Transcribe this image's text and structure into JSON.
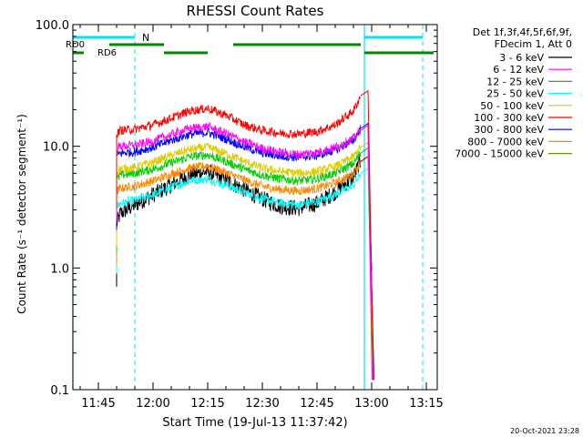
{
  "chart_data": {
    "type": "line",
    "title": "RHESSI Count Rates",
    "xlabel": "Start Time (19-Jul-13 11:37:42)",
    "ylabel": "Count Rate (s⁻¹ detector segment⁻¹)",
    "yscale": "log",
    "ylim": [
      0.1,
      100
    ],
    "xlim": [
      "11:38",
      "13:18"
    ],
    "x_ticks": [
      "11:45",
      "12:00",
      "12:15",
      "12:30",
      "12:45",
      "13:00",
      "13:15"
    ],
    "y_ticks": [
      "0.1",
      "1.0",
      "10.0",
      "100.0"
    ],
    "grid": false,
    "legend_header": [
      "Det 1f,3f,4f,5f,6f,9f,",
      "FDecim 1, Att 0"
    ],
    "legend_position": "right",
    "series": [
      {
        "name": "3 - 6 keV",
        "color": "#000000",
        "x": [
          "11:50",
          "11:51",
          "11:55",
          "12:00",
          "12:05",
          "12:10",
          "12:15",
          "12:20",
          "12:25",
          "12:30",
          "12:35",
          "12:40",
          "12:45",
          "12:50",
          "12:55",
          "12:57"
        ],
        "y": [
          2.3,
          2.8,
          3.3,
          4.0,
          4.8,
          5.8,
          6.2,
          5.3,
          4.4,
          3.7,
          3.2,
          3.1,
          3.4,
          4.2,
          5.6,
          7.5
        ]
      },
      {
        "name": "6 - 12 keV",
        "color": "#ff00ff",
        "x": [
          "11:50",
          "11:51",
          "11:55",
          "12:00",
          "12:05",
          "12:10",
          "12:15",
          "12:20",
          "12:25",
          "12:30",
          "12:35",
          "12:40",
          "12:45",
          "12:50",
          "12:55",
          "12:57"
        ],
        "y": [
          9.5,
          10.0,
          10.2,
          11.0,
          12.5,
          14.0,
          14.5,
          12.8,
          10.9,
          9.6,
          8.9,
          8.6,
          8.9,
          9.8,
          11.6,
          13.5
        ]
      },
      {
        "name": "12 - 25 keV",
        "color": "#00cc00",
        "x": [
          "11:50",
          "11:51",
          "11:55",
          "12:00",
          "12:05",
          "12:10",
          "12:15",
          "12:20",
          "12:25",
          "12:30",
          "12:35",
          "12:40",
          "12:45",
          "12:50",
          "12:55",
          "12:57"
        ],
        "y": [
          5.3,
          5.8,
          6.0,
          6.5,
          7.3,
          8.2,
          8.5,
          7.5,
          6.5,
          5.8,
          5.4,
          5.2,
          5.4,
          6.0,
          7.2,
          8.8
        ]
      },
      {
        "name": "25 - 50 keV",
        "color": "#00ffff",
        "x": [
          "11:50",
          "11:51",
          "11:55",
          "12:00",
          "12:05",
          "12:10",
          "12:15",
          "12:20",
          "12:25",
          "12:30",
          "12:35",
          "12:40",
          "12:45",
          "12:50",
          "12:55",
          "12:57"
        ],
        "y": [
          3.2,
          3.4,
          3.6,
          4.0,
          4.6,
          5.2,
          5.4,
          4.8,
          4.2,
          3.7,
          3.4,
          3.3,
          3.5,
          4.0,
          4.8,
          6.0
        ]
      },
      {
        "name": "50 - 100 keV",
        "color": "#ddcc00",
        "x": [
          "11:50",
          "11:51",
          "11:55",
          "12:00",
          "12:05",
          "12:10",
          "12:15",
          "12:20",
          "12:25",
          "12:30",
          "12:35",
          "12:40",
          "12:45",
          "12:50",
          "12:55",
          "12:57"
        ],
        "y": [
          6.0,
          6.5,
          6.7,
          7.4,
          8.4,
          9.4,
          9.8,
          8.7,
          7.5,
          6.6,
          6.2,
          6.0,
          6.2,
          6.8,
          8.2,
          9.8
        ]
      },
      {
        "name": "100 - 300 keV",
        "color": "#ff0000",
        "x": [
          "11:50",
          "11:51",
          "11:55",
          "12:00",
          "12:05",
          "12:10",
          "12:15",
          "12:20",
          "12:25",
          "12:30",
          "12:35",
          "12:40",
          "12:45",
          "12:50",
          "12:55",
          "12:57"
        ],
        "y": [
          12.5,
          13.5,
          13.8,
          15.0,
          17.0,
          19.5,
          20.5,
          18.0,
          15.0,
          13.5,
          12.8,
          12.6,
          13.2,
          15.0,
          19.5,
          26.0
        ]
      },
      {
        "name": "300 - 800 keV",
        "color": "#0000ff",
        "x": [
          "11:50",
          "11:51",
          "11:55",
          "12:00",
          "12:05",
          "12:10",
          "12:15",
          "12:20",
          "12:25",
          "12:30",
          "12:35",
          "12:40",
          "12:45",
          "12:50",
          "12:55",
          "12:57"
        ],
        "y": [
          8.2,
          8.8,
          9.0,
          9.8,
          11.2,
          12.5,
          13.0,
          11.5,
          9.9,
          8.8,
          8.3,
          8.1,
          8.4,
          9.3,
          11.2,
          14.0
        ]
      },
      {
        "name": "800 - 7000 keV",
        "color": "#ff8800",
        "x": [
          "11:50",
          "11:51",
          "11:55",
          "12:00",
          "12:05",
          "12:10",
          "12:15",
          "12:20",
          "12:25",
          "12:30",
          "12:35",
          "12:40",
          "12:45",
          "12:50",
          "12:55",
          "12:57"
        ],
        "y": [
          4.2,
          4.5,
          4.7,
          5.2,
          5.9,
          6.6,
          6.9,
          6.1,
          5.3,
          4.7,
          4.4,
          4.3,
          4.5,
          5.0,
          6.0,
          7.4
        ]
      },
      {
        "name": "7000 - 15000 keV",
        "color": "#669900",
        "x": [],
        "y": []
      }
    ],
    "annotations": {
      "cyan_bars": [
        {
          "label": "N",
          "start": "11:38",
          "end": "11:55"
        },
        {
          "label": "",
          "start": "12:58",
          "end": "13:14"
        }
      ],
      "green_bars": [
        {
          "label": "RD0",
          "row": 1,
          "start": "11:48",
          "end": "12:03"
        },
        {
          "label": "",
          "row": 1,
          "start": "12:22",
          "end": "12:57"
        },
        {
          "label": "RD6",
          "row": 2,
          "start": "11:38",
          "end": "11:41"
        },
        {
          "label": "",
          "row": 2,
          "start": "12:03",
          "end": "12:15"
        },
        {
          "label": "",
          "row": 2,
          "start": "12:58",
          "end": "13:17"
        }
      ],
      "dashed_vlines": [
        "11:55",
        "13:14"
      ],
      "solid_vlines": [
        "11:38",
        "12:58"
      ]
    }
  },
  "footer": {
    "timestamp": "20-Oct-2021 23:28"
  }
}
